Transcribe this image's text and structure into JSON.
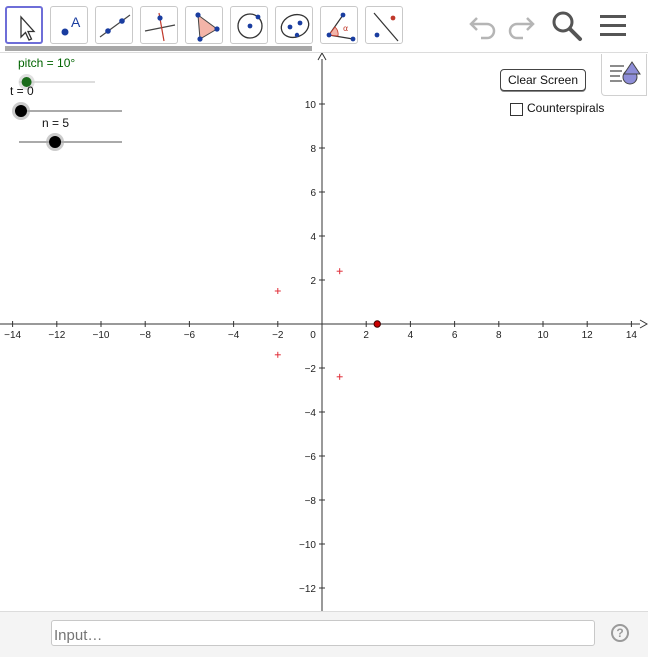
{
  "toolbar": {
    "tools": [
      {
        "name": "move-tool",
        "selected": true
      },
      {
        "name": "point-tool"
      },
      {
        "name": "line-tool"
      },
      {
        "name": "perpendicular-line-tool"
      },
      {
        "name": "polygon-tool"
      },
      {
        "name": "circle-tool"
      },
      {
        "name": "ellipse-tool"
      },
      {
        "name": "angle-tool"
      },
      {
        "name": "reflect-tool"
      }
    ],
    "point_tool_letter": "A",
    "angle_tool_letter": "α",
    "actions": [
      "undo-icon",
      "redo-icon",
      "search-icon",
      "menu-icon"
    ]
  },
  "sliders": {
    "pitch": {
      "label": "pitch = 10°",
      "color": "#006400",
      "fraction": 0.1
    },
    "t": {
      "label": "t = 0",
      "fraction": 0.0
    },
    "n": {
      "label": "n = 5",
      "fraction": 0.35
    }
  },
  "controls": {
    "clear_button": "Clear Screen",
    "counterspirals_label": "Counterspirals",
    "counterspirals_checked": false
  },
  "graph": {
    "x_ticks": [
      "−14",
      "−12",
      "−10",
      "−8",
      "−6",
      "−4",
      "−2",
      "0",
      "2",
      "4",
      "6",
      "8",
      "10",
      "12",
      "14"
    ],
    "y_ticks_pos": [
      "2",
      "4",
      "6",
      "8",
      "10"
    ],
    "y_ticks_neg": [
      "−2",
      "−4",
      "−6",
      "−8",
      "−10",
      "−12"
    ],
    "points": [
      {
        "x": 2.5,
        "y": 0,
        "color": "#cc0000",
        "style": "dot"
      },
      {
        "x": 0.8,
        "y": 2.4,
        "color": "#e0303a",
        "style": "plus"
      },
      {
        "x": -2.0,
        "y": 1.5,
        "color": "#e0303a",
        "style": "plus"
      },
      {
        "x": -2.0,
        "y": -1.4,
        "color": "#e0303a",
        "style": "plus"
      },
      {
        "x": 0.8,
        "y": -2.4,
        "color": "#e0303a",
        "style": "plus"
      }
    ]
  },
  "input_bar": {
    "placeholder": "Input…",
    "help": "?"
  }
}
